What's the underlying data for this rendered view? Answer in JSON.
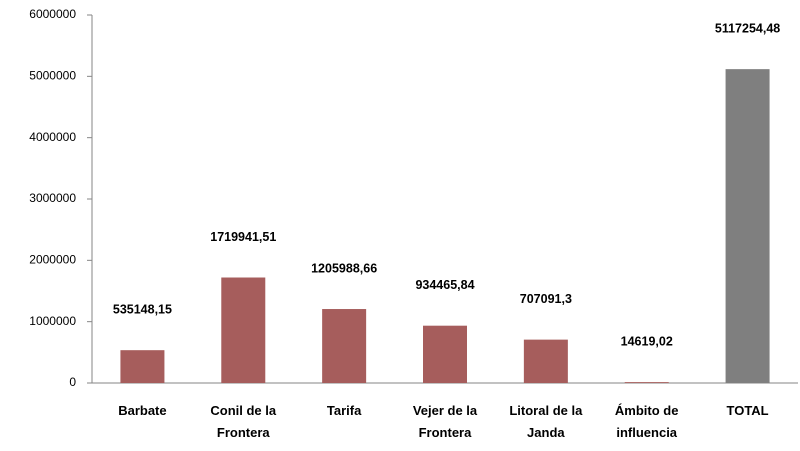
{
  "chart_data": {
    "type": "bar",
    "categories": [
      "Barbate",
      "Conil de la Frontera",
      "Tarifa",
      "Vejer de la Frontera",
      "Litoral de la Janda",
      "Ámbito de influencia",
      "TOTAL"
    ],
    "values": [
      535148.15,
      1719941.51,
      1205988.66,
      934465.84,
      707091.3,
      14619.02,
      5117254.48
    ],
    "value_labels": [
      "535148,15",
      "1719941,51",
      "1205988,66",
      "934465,84",
      "707091,3",
      "14619,02",
      "5117254,48"
    ],
    "colors": [
      "#a65d5c",
      "#a65d5c",
      "#a65d5c",
      "#a65d5c",
      "#a65d5c",
      "#a65d5c",
      "#7f7f7f"
    ],
    "ylim": [
      0,
      6000000
    ],
    "yticks": [
      0,
      1000000,
      2000000,
      3000000,
      4000000,
      5000000,
      6000000
    ],
    "grid": false
  }
}
